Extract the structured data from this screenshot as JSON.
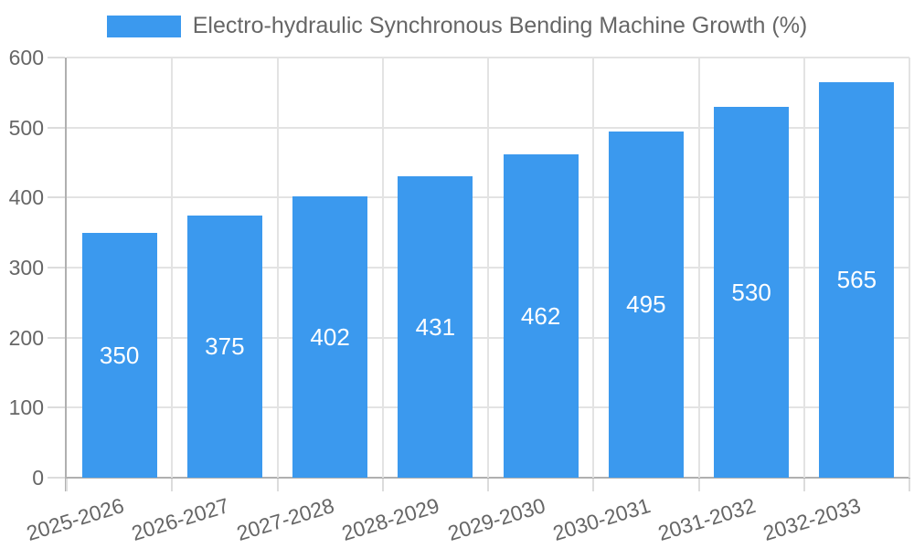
{
  "colors": {
    "bar": "#3B99EE",
    "grid": "#E3E3E3",
    "axis": "#B0B0B0",
    "tick": "#DCDCDC",
    "tick_text": "#666666",
    "value_text": "#FFFFFF"
  },
  "legend": {
    "label": "Electro-hydraulic Synchronous Bending Machine Growth (%)"
  },
  "chart_data": {
    "type": "bar",
    "title": "Electro-hydraulic Synchronous Bending Machine Growth (%)",
    "categories": [
      "2025-2026",
      "2026-2027",
      "2027-2028",
      "2028-2029",
      "2029-2030",
      "2030-2031",
      "2031-2032",
      "2032-2033"
    ],
    "series": [
      {
        "name": "Electro-hydraulic Synchronous Bending Machine Growth (%)",
        "values": [
          350,
          375,
          402,
          431,
          462,
          495,
          530,
          565
        ]
      }
    ],
    "xlabel": "",
    "ylabel": "",
    "ylim": [
      0,
      600
    ],
    "yticks": [
      0,
      100,
      200,
      300,
      400,
      500,
      600
    ],
    "grid": true,
    "legend_position": "top",
    "value_labels": "inside-center"
  }
}
